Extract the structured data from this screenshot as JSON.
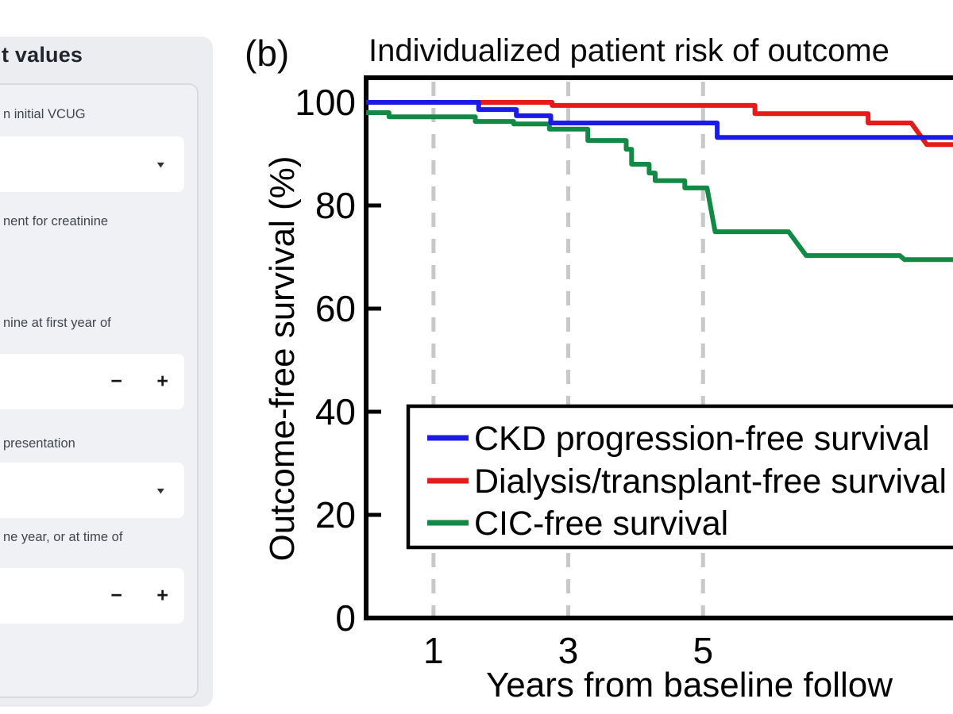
{
  "sidebar": {
    "title_fragment": "t values",
    "fields": [
      {
        "kind": "select",
        "label": "n initial VCUG"
      },
      {
        "kind": "label",
        "label": "nent for creatinine"
      },
      {
        "kind": "number",
        "label": "nine at first year of"
      },
      {
        "kind": "select",
        "label": "presentation"
      },
      {
        "kind": "number",
        "label": "ne year, or at time of"
      }
    ],
    "icons": {
      "caret": "▾",
      "minus": "−",
      "plus": "+"
    }
  },
  "chart_data": {
    "type": "line",
    "subtype": "step-survival",
    "panel_label": "(b)",
    "title": "Individualized patient risk of outcome",
    "xlabel": "Years from baseline follow",
    "ylabel": "Outcome-free survival (%)",
    "xticks": [
      1,
      3,
      5
    ],
    "yticks": [
      0,
      20,
      40,
      60,
      80,
      100
    ],
    "xlim": [
      0,
      8.8
    ],
    "ylim": [
      0,
      104.5
    ],
    "grid": "dashed vertical lines at xticks",
    "legend_position": "inside lower-right, boxed",
    "series": [
      {
        "name": "CKD progression-free survival",
        "color": "#1b1be4",
        "steps": [
          [
            0,
            100
          ],
          [
            1.67,
            100
          ],
          [
            1.67,
            98.6
          ],
          [
            2.23,
            98.6
          ],
          [
            2.23,
            97.4
          ],
          [
            2.74,
            97.4
          ],
          [
            2.74,
            96.0
          ],
          [
            5.21,
            96.0
          ],
          [
            5.21,
            93.2
          ],
          [
            8.8,
            93.2
          ]
        ]
      },
      {
        "name": "Dialysis/transplant-free survival",
        "color": "#e51a1a",
        "steps": [
          [
            0,
            100
          ],
          [
            2.76,
            100
          ],
          [
            2.76,
            99.4
          ],
          [
            5.77,
            99.4
          ],
          [
            5.77,
            97.8
          ],
          [
            7.45,
            97.8
          ],
          [
            7.45,
            96.0
          ],
          [
            8.09,
            96.0
          ],
          [
            8.32,
            91.8
          ],
          [
            8.8,
            91.8
          ]
        ]
      },
      {
        "name": "CIC-free survival",
        "color": "#128a46",
        "steps": [
          [
            0,
            98.0
          ],
          [
            0.34,
            98.0
          ],
          [
            0.34,
            97.2
          ],
          [
            1.62,
            97.2
          ],
          [
            1.62,
            96.3
          ],
          [
            2.19,
            96.3
          ],
          [
            2.19,
            95.8
          ],
          [
            2.72,
            95.8
          ],
          [
            2.72,
            94.8
          ],
          [
            3.29,
            94.8
          ],
          [
            3.29,
            92.6
          ],
          [
            3.86,
            92.6
          ],
          [
            3.86,
            90.9
          ],
          [
            3.94,
            90.9
          ],
          [
            3.94,
            88.0
          ],
          [
            4.2,
            88.0
          ],
          [
            4.2,
            86.3
          ],
          [
            4.29,
            86.3
          ],
          [
            4.29,
            84.8
          ],
          [
            4.73,
            84.8
          ],
          [
            4.73,
            83.4
          ],
          [
            5.06,
            83.4
          ],
          [
            5.18,
            74.9
          ],
          [
            6.27,
            74.9
          ],
          [
            6.53,
            70.3
          ],
          [
            7.92,
            70.3
          ],
          [
            7.99,
            69.5
          ],
          [
            8.8,
            69.5
          ]
        ]
      }
    ],
    "colors": {
      "axis": "#000000",
      "grid": "#c8c8c8",
      "legend_bg": "#ffffff"
    }
  }
}
